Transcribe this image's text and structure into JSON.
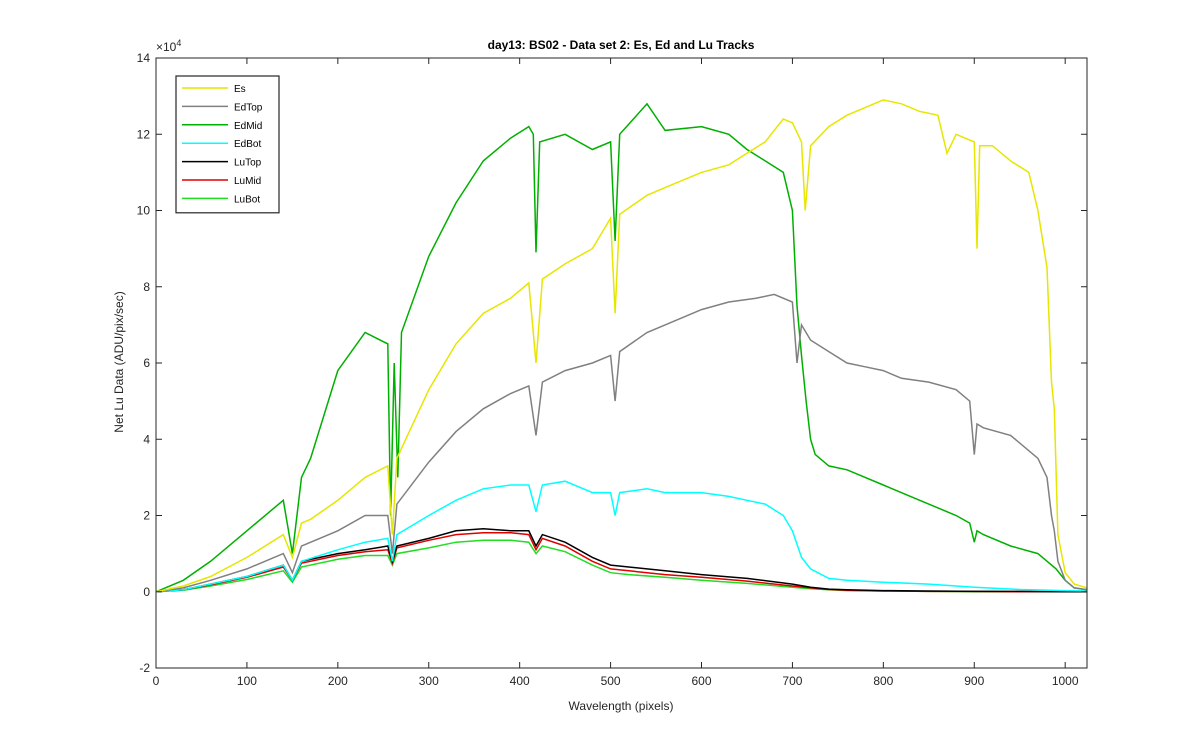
{
  "chart_data": {
    "type": "line",
    "title": "day13: BS02 - Data set 2: Es, Ed and Lu Tracks",
    "xlabel": "Wavelength (pixels)",
    "ylabel": "Net Lu Data (ADU/pix/sec)",
    "y_exponent_label": "×10",
    "y_exponent_power": "4",
    "xlim": [
      0,
      1024
    ],
    "ylim": [
      -2,
      14
    ],
    "y_scale_note": "values in units of 10^4",
    "x_ticks": [
      0,
      100,
      200,
      300,
      400,
      500,
      600,
      700,
      800,
      900,
      1000
    ],
    "y_ticks": [
      -2,
      0,
      2,
      4,
      6,
      8,
      10,
      12,
      14
    ],
    "legend_position": "top-left",
    "grid": false,
    "series": [
      {
        "name": "Es",
        "color": "#e6e600",
        "x": [
          0,
          30,
          60,
          100,
          140,
          150,
          160,
          170,
          200,
          230,
          255,
          260,
          265,
          300,
          330,
          360,
          390,
          410,
          418,
          425,
          450,
          480,
          500,
          505,
          510,
          540,
          560,
          600,
          630,
          650,
          670,
          680,
          690,
          700,
          710,
          714,
          720,
          740,
          760,
          780,
          800,
          820,
          840,
          860,
          870,
          880,
          900,
          903,
          906,
          920,
          940,
          960,
          970,
          980,
          985,
          988,
          992,
          1000,
          1010,
          1024
        ],
        "y": [
          0,
          0.15,
          0.4,
          0.9,
          1.5,
          0.9,
          1.8,
          1.9,
          2.4,
          3.0,
          3.3,
          1.5,
          3.5,
          5.3,
          6.5,
          7.3,
          7.7,
          8.1,
          6.0,
          8.2,
          8.6,
          9.0,
          9.8,
          7.3,
          9.9,
          10.4,
          10.6,
          11.0,
          11.2,
          11.5,
          11.8,
          12.1,
          12.4,
          12.3,
          11.8,
          10.0,
          11.7,
          12.2,
          12.5,
          12.7,
          12.9,
          12.8,
          12.6,
          12.5,
          11.5,
          12.0,
          11.8,
          9.0,
          11.7,
          11.7,
          11.3,
          11.0,
          10.0,
          8.5,
          5.5,
          4.8,
          1.5,
          0.5,
          0.2,
          0.1
        ]
      },
      {
        "name": "EdTop",
        "color": "#808080",
        "x": [
          0,
          30,
          60,
          100,
          140,
          150,
          160,
          200,
          230,
          255,
          260,
          265,
          300,
          330,
          360,
          390,
          410,
          418,
          425,
          450,
          480,
          500,
          505,
          510,
          540,
          560,
          600,
          630,
          660,
          680,
          700,
          705,
          710,
          720,
          740,
          760,
          780,
          800,
          820,
          850,
          880,
          895,
          900,
          903,
          910,
          940,
          970,
          980,
          985,
          988,
          992,
          1000,
          1010,
          1024
        ],
        "y": [
          0,
          0.1,
          0.3,
          0.6,
          1.0,
          0.5,
          1.2,
          1.6,
          2.0,
          2.0,
          1.0,
          2.3,
          3.4,
          4.2,
          4.8,
          5.2,
          5.4,
          4.1,
          5.5,
          5.8,
          6.0,
          6.2,
          5.0,
          6.3,
          6.8,
          7.0,
          7.4,
          7.6,
          7.7,
          7.8,
          7.6,
          6.0,
          7.0,
          6.6,
          6.3,
          6.0,
          5.9,
          5.8,
          5.6,
          5.5,
          5.3,
          5.0,
          3.6,
          4.4,
          4.3,
          4.1,
          3.5,
          3.0,
          2.0,
          1.6,
          0.8,
          0.3,
          0.1,
          0.05
        ]
      },
      {
        "name": "EdMid",
        "color": "#00b000",
        "x": [
          0,
          30,
          60,
          100,
          140,
          150,
          160,
          170,
          200,
          230,
          255,
          258,
          262,
          266,
          270,
          300,
          330,
          360,
          390,
          410,
          415,
          418,
          422,
          450,
          480,
          500,
          505,
          510,
          540,
          560,
          600,
          630,
          650,
          670,
          690,
          700,
          705,
          710,
          715,
          720,
          725,
          740,
          760,
          800,
          840,
          880,
          895,
          900,
          903,
          910,
          940,
          970,
          990,
          1000,
          1010,
          1024
        ],
        "y": [
          0,
          0.3,
          0.8,
          1.6,
          2.4,
          1.0,
          3.0,
          3.5,
          5.8,
          6.8,
          6.5,
          2.0,
          6.0,
          3.0,
          6.8,
          8.8,
          10.2,
          11.3,
          11.9,
          12.2,
          12.0,
          8.9,
          11.8,
          12.0,
          11.6,
          11.8,
          9.2,
          12.0,
          12.8,
          12.1,
          12.2,
          12.0,
          11.6,
          11.3,
          11.0,
          10.0,
          7.5,
          6.2,
          5.0,
          4.0,
          3.6,
          3.3,
          3.2,
          2.8,
          2.4,
          2.0,
          1.8,
          1.3,
          1.6,
          1.5,
          1.2,
          1.0,
          0.6,
          0.3,
          0.1,
          0.05
        ]
      },
      {
        "name": "EdBot",
        "color": "#00ffff",
        "x": [
          0,
          30,
          60,
          100,
          140,
          150,
          160,
          200,
          230,
          255,
          260,
          265,
          300,
          330,
          360,
          390,
          410,
          418,
          425,
          450,
          480,
          500,
          505,
          510,
          540,
          560,
          600,
          630,
          650,
          670,
          690,
          700,
          710,
          720,
          740,
          760,
          800,
          850,
          900,
          950,
          1000,
          1024
        ],
        "y": [
          0,
          0.05,
          0.2,
          0.4,
          0.7,
          0.3,
          0.8,
          1.1,
          1.3,
          1.4,
          0.8,
          1.5,
          2.0,
          2.4,
          2.7,
          2.8,
          2.8,
          2.1,
          2.8,
          2.9,
          2.6,
          2.6,
          2.0,
          2.6,
          2.7,
          2.6,
          2.6,
          2.5,
          2.4,
          2.3,
          2.0,
          1.6,
          0.9,
          0.6,
          0.35,
          0.3,
          0.25,
          0.2,
          0.12,
          0.06,
          0.03,
          0.02
        ]
      },
      {
        "name": "LuTop",
        "color": "#000000",
        "x": [
          0,
          30,
          60,
          100,
          140,
          150,
          160,
          200,
          230,
          255,
          260,
          265,
          300,
          330,
          360,
          390,
          410,
          418,
          425,
          450,
          480,
          500,
          520,
          560,
          600,
          650,
          700,
          720,
          740,
          760,
          800,
          850,
          900,
          950,
          1000,
          1024
        ],
        "y": [
          0,
          0.05,
          0.2,
          0.4,
          0.7,
          0.3,
          0.8,
          1.0,
          1.1,
          1.2,
          0.8,
          1.2,
          1.4,
          1.6,
          1.65,
          1.6,
          1.6,
          1.2,
          1.5,
          1.3,
          0.9,
          0.7,
          0.65,
          0.55,
          0.45,
          0.35,
          0.2,
          0.12,
          0.07,
          0.05,
          0.03,
          0.02,
          0.01,
          0.01,
          0.0,
          0.0
        ]
      },
      {
        "name": "LuMid",
        "color": "#e00000",
        "x": [
          0,
          30,
          60,
          100,
          140,
          150,
          160,
          200,
          230,
          255,
          260,
          265,
          300,
          330,
          360,
          390,
          410,
          418,
          425,
          450,
          480,
          500,
          520,
          560,
          600,
          650,
          700,
          720,
          740,
          760,
          800,
          850,
          900,
          950,
          1000,
          1024
        ],
        "y": [
          0,
          0.05,
          0.18,
          0.38,
          0.65,
          0.3,
          0.75,
          0.95,
          1.05,
          1.1,
          0.75,
          1.15,
          1.35,
          1.5,
          1.55,
          1.55,
          1.5,
          1.1,
          1.4,
          1.2,
          0.8,
          0.6,
          0.55,
          0.45,
          0.38,
          0.28,
          0.15,
          0.1,
          0.06,
          0.04,
          0.02,
          0.01,
          0.01,
          0.0,
          0.0,
          0.0
        ]
      },
      {
        "name": "LuBot",
        "color": "#22dd22",
        "x": [
          0,
          30,
          60,
          100,
          140,
          150,
          160,
          200,
          230,
          255,
          260,
          265,
          300,
          330,
          360,
          390,
          410,
          418,
          425,
          450,
          480,
          500,
          520,
          560,
          600,
          650,
          700,
          720,
          740,
          760,
          800,
          850,
          900,
          950,
          1000,
          1024
        ],
        "y": [
          0,
          0.04,
          0.15,
          0.32,
          0.55,
          0.25,
          0.65,
          0.85,
          0.95,
          0.95,
          0.7,
          1.0,
          1.15,
          1.3,
          1.35,
          1.35,
          1.3,
          1.0,
          1.2,
          1.05,
          0.7,
          0.5,
          0.45,
          0.38,
          0.3,
          0.22,
          0.12,
          0.08,
          0.05,
          0.03,
          0.02,
          0.01,
          0.0,
          0.0,
          0.0,
          0.0
        ]
      }
    ]
  }
}
